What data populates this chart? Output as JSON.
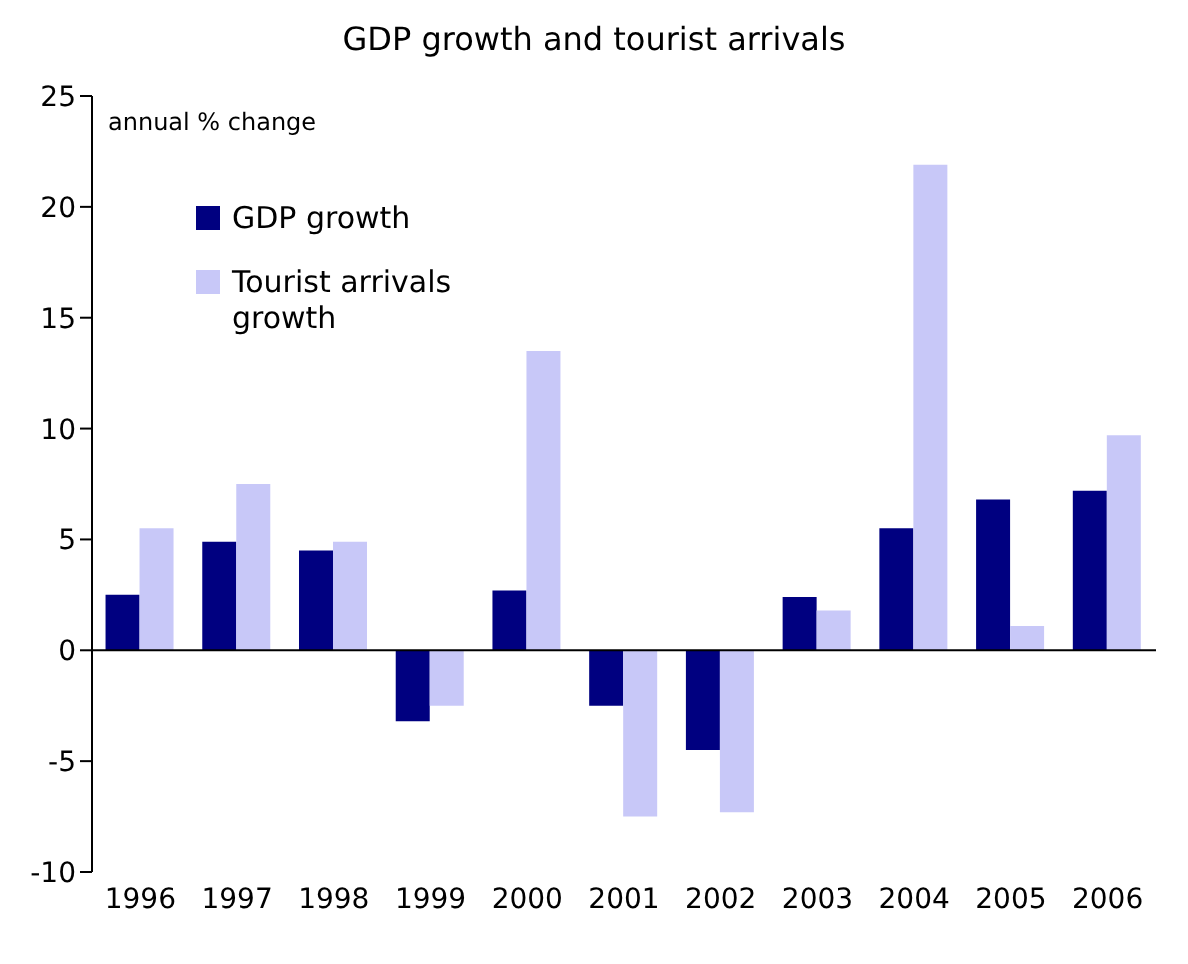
{
  "chart_data": {
    "type": "bar",
    "title": "GDP growth and tourist arrivals",
    "annotations": [
      "annual % change"
    ],
    "categories": [
      "1996",
      "1997",
      "1998",
      "1999",
      "2000",
      "2001",
      "2002",
      "2003",
      "2004",
      "2005",
      "2006"
    ],
    "series": [
      {
        "name": "GDP growth",
        "color": "#000080",
        "values": [
          2.5,
          4.9,
          4.5,
          -3.2,
          2.7,
          -2.5,
          -4.5,
          2.4,
          5.5,
          6.8,
          7.2
        ]
      },
      {
        "name": "Tourist arrivals growth",
        "color": "#c8c8f8",
        "values": [
          5.5,
          7.5,
          4.9,
          -2.5,
          13.5,
          -7.5,
          -7.3,
          1.8,
          21.9,
          1.1,
          9.7
        ]
      }
    ],
    "ylim": [
      -10,
      25
    ],
    "yticks": [
      -10,
      -5,
      0,
      5,
      10,
      15,
      20,
      25
    ],
    "legend": "top left"
  }
}
